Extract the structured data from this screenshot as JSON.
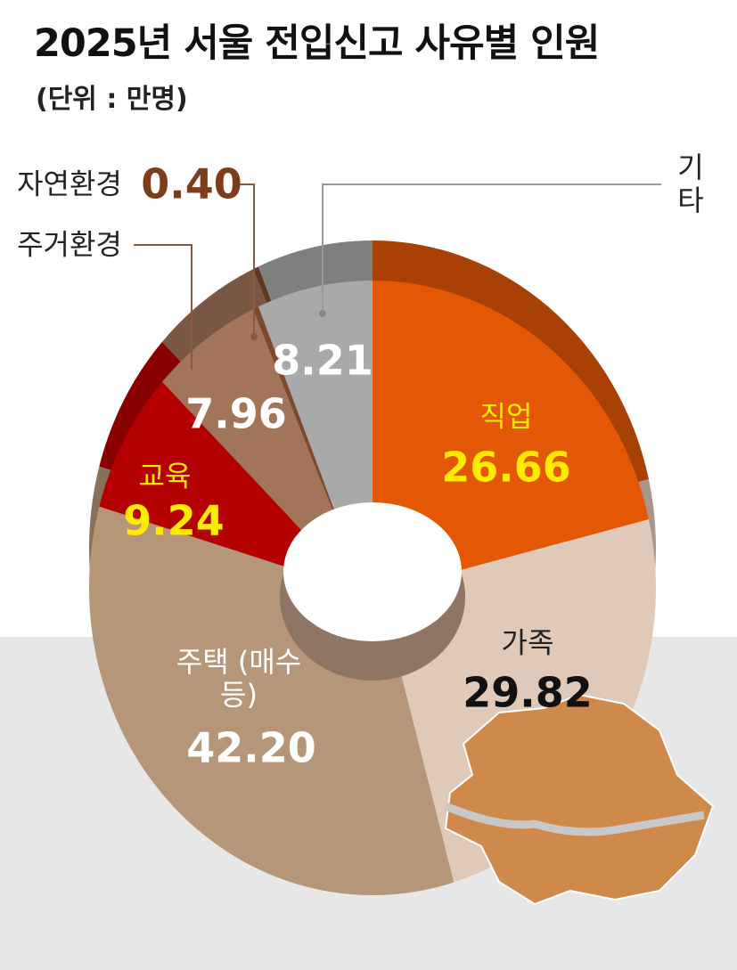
{
  "chart_data": {
    "type": "donut",
    "title": "2025년 서울 전입신고 사유별 인원",
    "subtitle": "(단위 : 만명)",
    "categories": [
      "직업",
      "가족",
      "주택 (매수 등)",
      "교육",
      "주거환경",
      "자연환경",
      "기타"
    ],
    "values": [
      26.66,
      29.82,
      42.2,
      9.24,
      7.96,
      0.4,
      8.21
    ],
    "value_labels": [
      "26.66",
      "29.82",
      "42.20",
      "9.24",
      "7.96",
      "0.40",
      "8.21"
    ],
    "colors": [
      "#e35705",
      "#dfc9b9",
      "#b59679",
      "#b50000",
      "#a27459",
      "#7d4a2e",
      "#a9a9a9"
    ]
  }
}
